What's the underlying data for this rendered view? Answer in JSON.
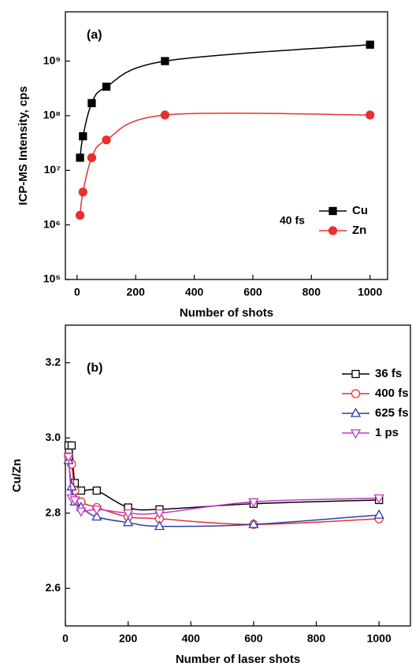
{
  "chart_data": [
    {
      "type": "line",
      "annotations": [
        "(a)",
        "40 fs"
      ],
      "xlabel": "Number of shots",
      "ylabel": "ICP-MS Intensity, cps",
      "log_y": true,
      "legend": "lower right",
      "xlim": [
        -40,
        1060
      ],
      "xticks": [
        0,
        200,
        400,
        600,
        800,
        1000
      ],
      "ylim": [
        100000,
        8000000000
      ],
      "yticks": [
        {
          "value": 100000,
          "label": "10⁵"
        },
        {
          "value": 1000000,
          "label": "10⁶"
        },
        {
          "value": 10000000,
          "label": "10⁷"
        },
        {
          "value": 100000000,
          "label": "10⁸"
        },
        {
          "value": 1000000000,
          "label": "10⁹"
        }
      ],
      "series": [
        {
          "name": "Cu",
          "color": "#000000",
          "marker": "square",
          "filled": true,
          "x": [
            10,
            20,
            50,
            100,
            300,
            1000
          ],
          "values": [
            17000000,
            42000000,
            170000000,
            340000000,
            1000000000,
            2000000000
          ]
        },
        {
          "name": "Zn",
          "color": "#e8302f",
          "marker": "circle",
          "filled": true,
          "x": [
            10,
            20,
            50,
            100,
            300,
            1000
          ],
          "values": [
            1500000,
            4000000,
            17000000,
            36000000,
            103000000,
            103000000
          ]
        }
      ]
    },
    {
      "type": "line",
      "annotations": [
        "(b)"
      ],
      "xlabel": "Number of laser shots",
      "ylabel": "Cu/Zn",
      "log_y": false,
      "legend": "upper right",
      "xlim": [
        0,
        1100
      ],
      "xticks": [
        0,
        200,
        400,
        600,
        800,
        1000
      ],
      "ylim": [
        2.5,
        3.3
      ],
      "yticks": [
        2.6,
        2.8,
        {
          "value": 3,
          "label": "3.0"
        },
        3.2
      ],
      "series": [
        {
          "name": "36 fs",
          "color": "#000000",
          "marker": "square",
          "filled": false,
          "x": [
            10,
            20,
            30,
            50,
            100,
            200,
            300,
            600,
            1000
          ],
          "values": [
            2.98,
            2.98,
            2.88,
            2.86,
            2.86,
            2.815,
            2.81,
            2.825,
            2.835
          ]
        },
        {
          "name": "400 fs",
          "color": "#e8302f",
          "marker": "circle",
          "filled": false,
          "x": [
            10,
            20,
            30,
            50,
            100,
            200,
            300,
            600,
            1000
          ],
          "values": [
            2.95,
            2.93,
            2.86,
            2.83,
            2.815,
            2.79,
            2.785,
            2.77,
            2.785
          ]
        },
        {
          "name": "625 fs",
          "color": "#2b3fa8",
          "marker": "triangle-up",
          "filled": false,
          "x": [
            10,
            20,
            30,
            50,
            100,
            200,
            300,
            600,
            1000
          ],
          "values": [
            2.94,
            2.87,
            2.83,
            2.815,
            2.79,
            2.775,
            2.765,
            2.77,
            2.795
          ]
        },
        {
          "name": "1 ps",
          "color": "#c03cc0",
          "marker": "triangle-down",
          "filled": false,
          "x": [
            10,
            20,
            30,
            50,
            100,
            200,
            300,
            600,
            1000
          ],
          "values": [
            2.95,
            2.84,
            2.835,
            2.805,
            2.81,
            2.8,
            2.8,
            2.83,
            2.84
          ]
        }
      ]
    }
  ]
}
